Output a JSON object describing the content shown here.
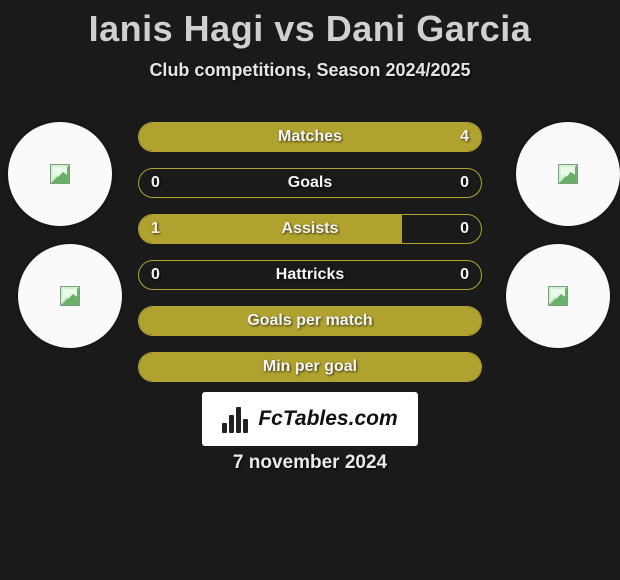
{
  "title": "Ianis Hagi vs Dani Garcia",
  "subtitle": "Club competitions, Season 2024/2025",
  "date": "7 november 2024",
  "logo_text": "FcTables.com",
  "colors": {
    "bar": "#b0a22f",
    "background": "#1a1a1a",
    "avatar": "#fafafa",
    "text": "#f5f5f5"
  },
  "bars": [
    {
      "label": "Matches",
      "left": "",
      "right": "4",
      "fill_pct": 100
    },
    {
      "label": "Goals",
      "left": "0",
      "right": "0",
      "fill_pct": 0
    },
    {
      "label": "Assists",
      "left": "1",
      "right": "0",
      "fill_pct": 77
    },
    {
      "label": "Hattricks",
      "left": "0",
      "right": "0",
      "fill_pct": 0
    },
    {
      "label": "Goals per match",
      "left": "",
      "right": "",
      "fill_pct": 100
    },
    {
      "label": "Min per goal",
      "left": "",
      "right": "",
      "fill_pct": 100
    }
  ]
}
